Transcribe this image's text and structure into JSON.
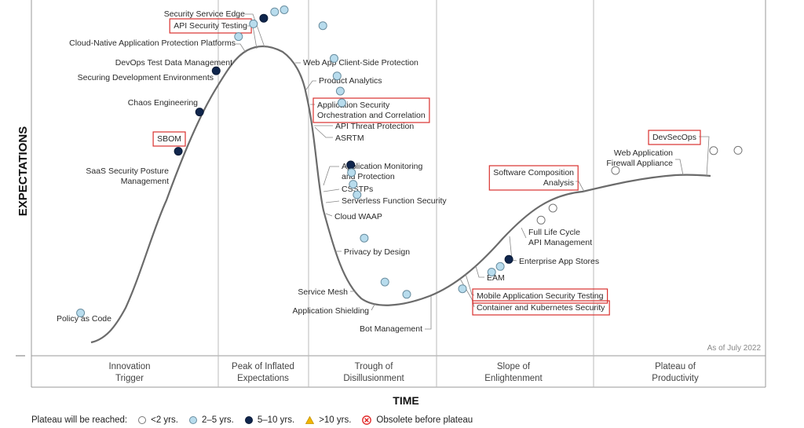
{
  "chart_data": {
    "type": "scatter",
    "title": "",
    "ylabel": "EXPECTATIONS",
    "xlabel": "TIME",
    "as_of": "As of July 2022",
    "phases": [
      {
        "line1": "Innovation",
        "line2": "Trigger"
      },
      {
        "line1": "Peak of Inflated",
        "line2": "Expectations"
      },
      {
        "line1": "Trough of",
        "line2": "Disillusionment"
      },
      {
        "line1": "Slope of",
        "line2": "Enlightenment"
      },
      {
        "line1": "Plateau of",
        "line2": "Productivity"
      }
    ],
    "category_colors": {
      "lt2": "#ffffff",
      "2to5": "#b8dced",
      "5to10": "#10264d",
      "gt10": "#f2b600",
      "obsolete": "#e02020"
    },
    "highlight_color": "#d9312e",
    "technologies": [
      {
        "label": [
          "Policy as Code"
        ],
        "x": 0.0737,
        "y": 0.1202,
        "category": "2to5",
        "highlighted": false
      },
      {
        "label": [
          "SaaS Security Posture",
          "Management"
        ],
        "x": 0.2201,
        "y": 0.5748,
        "category": "5to10",
        "highlighted": false
      },
      {
        "label": [
          "SBOM"
        ],
        "x": 0.252,
        "y": 0.6853,
        "category": "5to10",
        "highlighted": true
      },
      {
        "label": [
          "Chaos Engineering"
        ],
        "x": 0.2768,
        "y": 0.8011,
        "category": "5to10",
        "highlighted": false
      },
      {
        "label": [
          "Securing Development Environments"
        ],
        "x": 0.3103,
        "y": 0.8972,
        "category": "2to5",
        "highlighted": false
      },
      {
        "label": [
          "DevOps Test Data Management"
        ],
        "x": 0.3327,
        "y": 0.933,
        "category": "2to5",
        "highlighted": false
      },
      {
        "label": [
          "Cloud-Native Application Protection Platforms"
        ],
        "x": 0.3481,
        "y": 0.9488,
        "category": "5to10",
        "highlighted": false
      },
      {
        "label": [
          "API Security Testing"
        ],
        "x": 0.3645,
        "y": 0.9666,
        "category": "2to5",
        "highlighted": true
      },
      {
        "label": [
          "Security Service Edge"
        ],
        "x": 0.3788,
        "y": 0.9723,
        "category": "2to5",
        "highlighted": false
      },
      {
        "label": [
          "Web App Client-Side Protection"
        ],
        "x": 0.4367,
        "y": 0.9279,
        "category": "2to5",
        "highlighted": false
      },
      {
        "label": [
          "Product Analytics"
        ],
        "x": 0.4535,
        "y": 0.8358,
        "category": "2to5",
        "highlighted": false
      },
      {
        "label": [
          "Application Security",
          "Orchestration and Correlation"
        ],
        "x": 0.458,
        "y": 0.7866,
        "category": "2to5",
        "highlighted": true
      },
      {
        "label": [
          "API Threat Protection"
        ],
        "x": 0.4628,
        "y": 0.744,
        "category": "2to5",
        "highlighted": false
      },
      {
        "label": [
          "ASRTM"
        ],
        "x": 0.4652,
        "y": 0.7111,
        "category": "2to5",
        "highlighted": false
      },
      {
        "label": [
          "Application Monitoring",
          "and Protection"
        ],
        "x": 0.4785,
        "y": 0.5365,
        "category": "5to10",
        "highlighted": false
      },
      {
        "label": [
          "CSSTPs"
        ],
        "x": 0.4797,
        "y": 0.515,
        "category": "2to5",
        "highlighted": false
      },
      {
        "label": [
          "Serverless Function Security"
        ],
        "x": 0.4821,
        "y": 0.4822,
        "category": "2to5",
        "highlighted": false
      },
      {
        "label": [
          "Cloud WAAP"
        ],
        "x": 0.488,
        "y": 0.4526,
        "category": "2to5",
        "highlighted": false
      },
      {
        "label": [
          "Privacy by Design"
        ],
        "x": 0.4987,
        "y": 0.3307,
        "category": "2to5",
        "highlighted": false
      },
      {
        "label": [
          "Service Mesh"
        ],
        "x": 0.5297,
        "y": 0.2072,
        "category": "2to5",
        "highlighted": false
      },
      {
        "label": [
          "Application Shielding"
        ],
        "x": 0.5623,
        "y": 0.1727,
        "category": "2to5",
        "highlighted": false
      },
      {
        "label": [
          "Bot Management"
        ],
        "x": 0.6459,
        "y": 0.1884,
        "category": "2to5",
        "highlighted": false
      },
      {
        "label": [
          "Container and Kubernetes Security"
        ],
        "x": 0.6897,
        "y": 0.2351,
        "category": "2to5",
        "highlighted": true
      },
      {
        "label": [
          "Mobile Application Security Testing"
        ],
        "x": 0.7025,
        "y": 0.2511,
        "category": "2to5",
        "highlighted": true
      },
      {
        "label": [
          "EAM"
        ],
        "x": 0.7154,
        "y": 0.2709,
        "category": "5to10",
        "highlighted": false
      },
      {
        "label": [
          "Enterprise App Stores"
        ],
        "x": 0.7637,
        "y": 0.3813,
        "category": "lt2",
        "highlighted": false
      },
      {
        "label": [
          "Full Life Cycle",
          "API Management"
        ],
        "x": 0.7814,
        "y": 0.4151,
        "category": "lt2",
        "highlighted": false
      },
      {
        "label": [
          "Software Composition",
          "Analysis"
        ],
        "x": 0.8752,
        "y": 0.5208,
        "category": "lt2",
        "highlighted": true
      },
      {
        "label": [
          "Web Application",
          "Firewall Appliance"
        ],
        "x": 1.0222,
        "y": 0.5765,
        "category": "lt2",
        "highlighted": false
      },
      {
        "label": [
          "DevSecOps"
        ],
        "x": 1.0588,
        "y": 0.5775,
        "category": "lt2",
        "highlighted": true
      }
    ]
  },
  "legend": {
    "title": "Plateau will be reached:",
    "items": [
      {
        "label": "<2 yrs.",
        "category": "lt2"
      },
      {
        "label": "2–5 yrs.",
        "category": "2to5"
      },
      {
        "label": "5–10 yrs.",
        "category": "5to10"
      },
      {
        "label": ">10 yrs.",
        "category": "gt10"
      },
      {
        "label": "Obsolete before plateau",
        "category": "obsolete"
      }
    ]
  }
}
